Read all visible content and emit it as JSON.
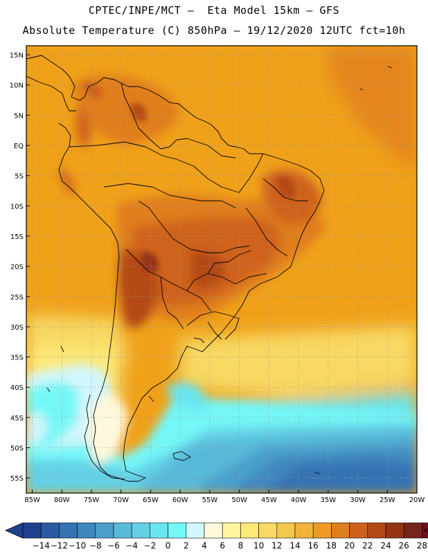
{
  "header": {
    "line1": "CPTEC/INPE/MCT –  Eta Model 15km – GFS",
    "line2": "Absolute Temperature (C) 850hPa – 19/12/2020 12UTC fct=10h"
  },
  "map": {
    "lat_labels": [
      "15N",
      "10N",
      "5N",
      "EQ",
      "5S",
      "10S",
      "15S",
      "20S",
      "25S",
      "30S",
      "35S",
      "40S",
      "45S",
      "50S",
      "55S"
    ],
    "lon_labels": [
      "85W",
      "80W",
      "75W",
      "70W",
      "65W",
      "60W",
      "55W",
      "50W",
      "45W",
      "40W",
      "35W",
      "30W",
      "25W",
      "20W"
    ],
    "lat_range": [
      -57.5,
      16.5
    ],
    "lon_range": [
      -86,
      -20
    ]
  },
  "colorbar": {
    "labels": [
      "-14",
      "-12",
      "-10",
      "-8",
      "-6",
      "-4",
      "-2",
      "0",
      "2",
      "4",
      "6",
      "8",
      "10",
      "12",
      "14",
      "16",
      "18",
      "20",
      "22",
      "24",
      "26",
      "28"
    ],
    "colors": [
      "#1f3f8f",
      "#2a5aa3",
      "#3472b3",
      "#3f88bf",
      "#4aa0cb",
      "#59b9d9",
      "#64d0e6",
      "#6ae6f0",
      "#74f7f7",
      "#d2f6fb",
      "#fff8dc",
      "#fff5a0",
      "#fce97a",
      "#f8d964",
      "#f4c84e",
      "#f2b33a",
      "#ee9b25",
      "#e07e1f",
      "#cf621a",
      "#b44816",
      "#953314",
      "#77241c",
      "#6e1021"
    ],
    "bg_color": "#f0a11a"
  }
}
